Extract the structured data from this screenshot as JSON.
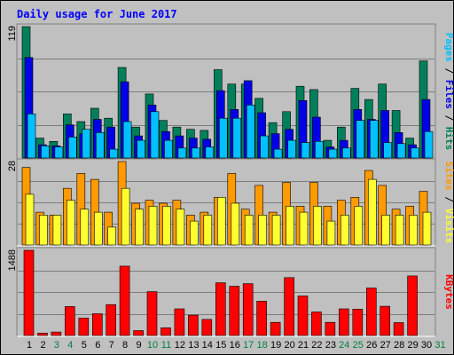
{
  "title": "Daily usage for June 2017",
  "colors": {
    "background": "#c0c0c0",
    "hits": "#00805a",
    "files": "#0000e6",
    "pages": "#00c0ff",
    "visits": "#ffff30",
    "sites": "#ff9a00",
    "kbytes": "#ff0000",
    "weekend_label": "#008040",
    "weekday_label": "#000000"
  },
  "legends": {
    "top": [
      {
        "text": "Pages",
        "color": "#00c0ff"
      },
      {
        "text": " / ",
        "color": "#000000"
      },
      {
        "text": "Files",
        "color": "#0000e6"
      },
      {
        "text": " / ",
        "color": "#000000"
      },
      {
        "text": "Hits",
        "color": "#00805a"
      }
    ],
    "middle": [
      {
        "text": "Sites",
        "color": "#ff9a00"
      },
      {
        "text": " / ",
        "color": "#000000"
      },
      {
        "text": "Visits",
        "color": "#ffff30"
      }
    ],
    "bottom": [
      {
        "text": "KBytes",
        "color": "#ff0000"
      }
    ]
  },
  "chart_data": [
    {
      "type": "bar",
      "title": "Daily usage for June 2017",
      "ymax_label": "119",
      "ylim": [
        0,
        119
      ],
      "grid": true,
      "categories": [
        "1",
        "2",
        "3",
        "4",
        "5",
        "6",
        "7",
        "8",
        "9",
        "10",
        "11",
        "12",
        "13",
        "14",
        "15",
        "16",
        "17",
        "18",
        "19",
        "20",
        "21",
        "22",
        "23",
        "24",
        "25",
        "26",
        "27",
        "28",
        "29",
        "30",
        "31"
      ],
      "weekend_days": [
        "3",
        "4",
        "10",
        "11",
        "17",
        "18",
        "24",
        "25",
        "31"
      ],
      "series": [
        {
          "name": "Hits",
          "values": [
            119,
            18,
            15,
            40,
            33,
            45,
            36,
            82,
            28,
            58,
            34,
            28,
            26,
            25,
            80,
            67,
            67,
            54,
            32,
            42,
            65,
            62,
            16,
            28,
            63,
            53,
            67,
            43,
            18,
            88,
            0
          ]
        },
        {
          "name": "Files",
          "values": [
            91,
            12,
            11,
            30,
            22,
            35,
            28,
            69,
            20,
            48,
            24,
            20,
            18,
            17,
            61,
            44,
            70,
            41,
            22,
            26,
            52,
            37,
            10,
            16,
            44,
            35,
            43,
            23,
            12,
            53,
            0
          ]
        },
        {
          "name": "Pages",
          "values": [
            40,
            11,
            10,
            19,
            26,
            23,
            8,
            33,
            16,
            42,
            16,
            9,
            9,
            10,
            36,
            36,
            48,
            20,
            8,
            16,
            14,
            15,
            8,
            9,
            34,
            34,
            14,
            13,
            9,
            24,
            0
          ]
        }
      ]
    },
    {
      "type": "bar",
      "ymax_label": "28",
      "ylim": [
        0,
        28
      ],
      "grid": true,
      "categories": [
        "1",
        "2",
        "3",
        "4",
        "5",
        "6",
        "7",
        "8",
        "9",
        "10",
        "11",
        "12",
        "13",
        "14",
        "15",
        "16",
        "17",
        "18",
        "19",
        "20",
        "21",
        "22",
        "23",
        "24",
        "25",
        "26",
        "27",
        "28",
        "29",
        "30",
        "31"
      ],
      "series": [
        {
          "name": "Sites",
          "values": [
            26,
            11,
            10,
            19,
            24,
            22,
            11,
            28,
            14,
            15,
            14,
            15,
            10,
            11,
            16,
            24,
            12,
            20,
            11,
            21,
            13,
            21,
            13,
            15,
            16,
            25,
            20,
            12,
            13,
            18,
            0
          ]
        },
        {
          "name": "Visits",
          "values": [
            17,
            10,
            10,
            15,
            12,
            11,
            6,
            19,
            12,
            13,
            13,
            12,
            8,
            10,
            16,
            14,
            10,
            10,
            10,
            13,
            11,
            13,
            8,
            10,
            13,
            22,
            10,
            10,
            10,
            11,
            0
          ]
        }
      ]
    },
    {
      "type": "bar",
      "ymax_label": "1488",
      "ylim": [
        0,
        1488
      ],
      "grid": true,
      "categories": [
        "1",
        "2",
        "3",
        "4",
        "5",
        "6",
        "7",
        "8",
        "9",
        "10",
        "11",
        "12",
        "13",
        "14",
        "15",
        "16",
        "17",
        "18",
        "19",
        "20",
        "21",
        "22",
        "23",
        "24",
        "25",
        "26",
        "27",
        "28",
        "29",
        "30",
        "31"
      ],
      "series": [
        {
          "name": "KBytes",
          "values": [
            1488,
            40,
            60,
            505,
            305,
            380,
            540,
            1210,
            85,
            765,
            135,
            465,
            355,
            280,
            920,
            860,
            905,
            600,
            230,
            1010,
            690,
            410,
            230,
            465,
            460,
            830,
            510,
            225,
            1040,
            0,
            0
          ]
        }
      ]
    }
  ]
}
